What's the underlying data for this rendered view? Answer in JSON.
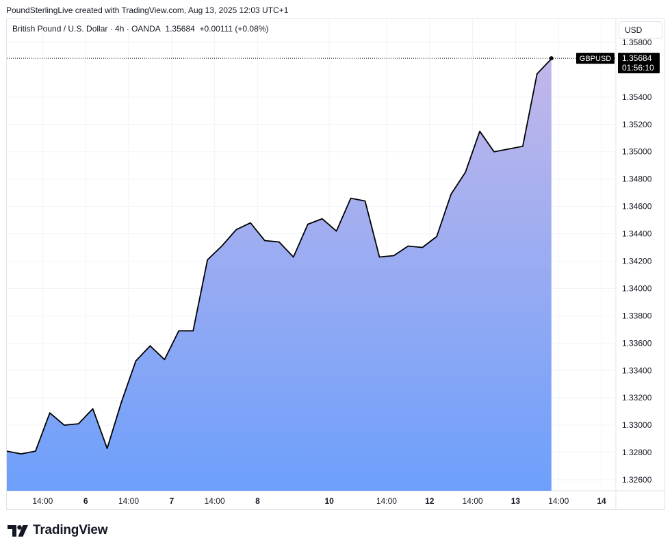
{
  "header": {
    "attribution": "PoundSterlingLive created with TradingView.com, Aug 13, 2025 12:03 UTC+1"
  },
  "legend": {
    "symbol_description": "British Pound / U.S. Dollar · 4h · OANDA",
    "last_price": "1.35684",
    "change": "+0.00111 (+0.08%)"
  },
  "currency_button": "USD",
  "price_label": {
    "symbol": "GBPUSD",
    "price": "1.35684",
    "countdown": "01:56:10"
  },
  "brand": {
    "name": "TradingView"
  },
  "colors": {
    "line": "#000000",
    "fill_top": "#c2b7ea",
    "fill_bottom": "#6d9ffb",
    "grid": "#f0f3fa",
    "label_bg": "#000000"
  },
  "chart_data": {
    "type": "area",
    "symbol": "GBPUSD",
    "interval": "4h",
    "source": "OANDA",
    "ylim": [
      1.3252,
      1.3597
    ],
    "y_ticks": [
      1.326,
      1.328,
      1.33,
      1.332,
      1.334,
      1.336,
      1.338,
      1.34,
      1.342,
      1.344,
      1.346,
      1.348,
      1.35,
      1.352,
      1.354,
      1.358
    ],
    "y_tick_labels": [
      "1.32600",
      "1.32800",
      "1.33000",
      "1.33200",
      "1.33400",
      "1.33600",
      "1.33800",
      "1.34000",
      "1.34200",
      "1.34400",
      "1.34600",
      "1.34800",
      "1.35000",
      "1.35200",
      "1.35400",
      "1.35800"
    ],
    "x_ticks": [
      {
        "label": "14:00",
        "bar": 2.5,
        "bold": false
      },
      {
        "label": "6",
        "bar": 5.5,
        "bold": true
      },
      {
        "label": "14:00",
        "bar": 8.5,
        "bold": false
      },
      {
        "label": "7",
        "bar": 11.5,
        "bold": true
      },
      {
        "label": "14:00",
        "bar": 14.5,
        "bold": false
      },
      {
        "label": "8",
        "bar": 17.5,
        "bold": true
      },
      {
        "label": "10",
        "bar": 22.5,
        "bold": true
      },
      {
        "label": "14:00",
        "bar": 26.5,
        "bold": false
      },
      {
        "label": "12",
        "bar": 29.5,
        "bold": true
      },
      {
        "label": "14:00",
        "bar": 32.5,
        "bold": false
      },
      {
        "label": "13",
        "bar": 35.5,
        "bold": true
      },
      {
        "label": "14:00",
        "bar": 38.5,
        "bold": false
      },
      {
        "label": "14",
        "bar": 41.5,
        "bold": true
      }
    ],
    "x_range": [
      0,
      42.5
    ],
    "values": [
      1.3281,
      1.3279,
      1.3281,
      1.3309,
      1.33,
      1.3301,
      1.3312,
      1.3283,
      1.3317,
      1.3347,
      1.3358,
      1.3348,
      1.3369,
      1.3369,
      1.3421,
      1.3431,
      1.3443,
      1.3448,
      1.3435,
      1.3434,
      1.3423,
      1.3447,
      1.3451,
      1.3442,
      1.3466,
      1.3464,
      1.3423,
      1.3424,
      1.3431,
      1.343,
      1.3438,
      1.3469,
      1.3485,
      1.3515,
      1.35,
      1.3502,
      1.3504,
      1.3557,
      1.3568
    ],
    "last_value": 1.35684
  }
}
